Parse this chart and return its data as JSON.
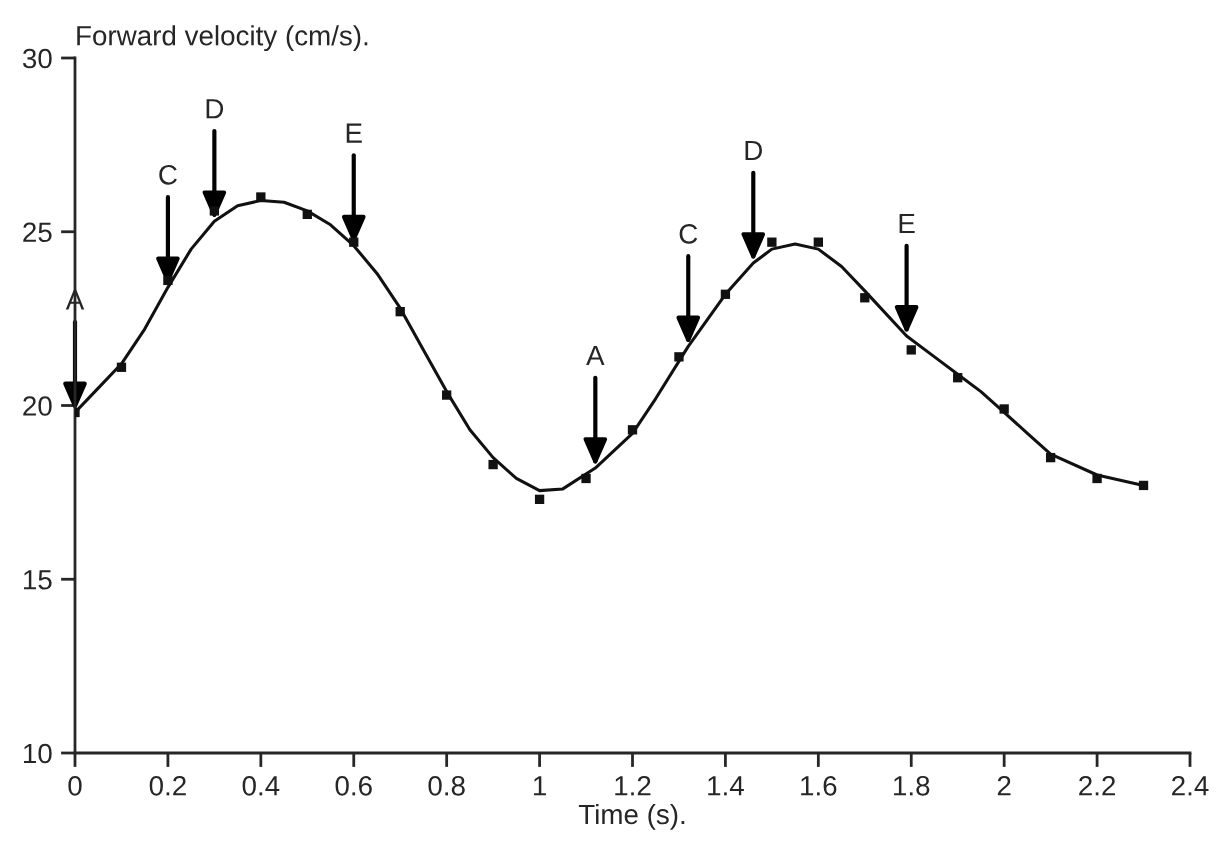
{
  "chart_data": {
    "type": "scatter",
    "xlabel": "Time (s).",
    "ylabel": "Forward velocity (cm/s).",
    "xlim": [
      0,
      2.4
    ],
    "ylim": [
      10,
      30
    ],
    "xticks": [
      0,
      0.2,
      0.4,
      0.6,
      0.8,
      1,
      1.2,
      1.4,
      1.6,
      1.8,
      2,
      2.2,
      2.4
    ],
    "yticks": [
      10,
      15,
      20,
      25,
      30
    ],
    "grid": false,
    "legend": false,
    "series": [
      {
        "marker": "square",
        "color": "#111111",
        "x": [
          0,
          0.1,
          0.2,
          0.3,
          0.4,
          0.5,
          0.6,
          0.7,
          0.8,
          0.9,
          1.0,
          1.1,
          1.2,
          1.3,
          1.4,
          1.5,
          1.6,
          1.7,
          1.8,
          1.9,
          2.0,
          2.1,
          2.2,
          2.3
        ],
        "values": [
          19.8,
          21.1,
          23.6,
          25.6,
          26.0,
          25.5,
          24.7,
          22.7,
          20.3,
          18.3,
          17.3,
          17.9,
          19.3,
          21.4,
          23.2,
          24.7,
          24.7,
          23.1,
          21.6,
          20.8,
          19.9,
          18.5,
          17.9,
          17.7
        ]
      },
      {
        "type": "line",
        "color": "#111111",
        "line_style": "solid",
        "x": [
          0,
          0.05,
          0.1,
          0.15,
          0.2,
          0.25,
          0.3,
          0.35,
          0.4,
          0.45,
          0.5,
          0.55,
          0.6,
          0.65,
          0.7,
          0.75,
          0.8,
          0.85,
          0.9,
          0.95,
          1.0,
          1.05,
          1.12,
          1.2,
          1.25,
          1.32,
          1.4,
          1.46,
          1.5,
          1.55,
          1.6,
          1.65,
          1.7,
          1.79,
          1.85,
          1.9,
          1.95,
          2.0,
          2.05,
          2.1,
          2.2,
          2.3
        ],
        "values": [
          19.8,
          20.5,
          21.2,
          22.2,
          23.4,
          24.5,
          25.3,
          25.75,
          25.9,
          25.85,
          25.6,
          25.2,
          24.6,
          23.8,
          22.8,
          21.6,
          20.4,
          19.3,
          18.5,
          17.9,
          17.55,
          17.6,
          18.2,
          19.2,
          20.2,
          21.7,
          23.2,
          24.1,
          24.5,
          24.65,
          24.5,
          24.0,
          23.3,
          22.0,
          21.4,
          20.9,
          20.4,
          19.8,
          19.2,
          18.6,
          18.0,
          17.7
        ]
      }
    ],
    "annotations": [
      {
        "text": "A",
        "x": 0,
        "y": 19.8
      },
      {
        "text": "C",
        "x": 0.2,
        "y": 23.4
      },
      {
        "text": "D",
        "x": 0.3,
        "y": 25.3
      },
      {
        "text": "E",
        "x": 0.6,
        "y": 24.6
      },
      {
        "text": "A",
        "x": 1.12,
        "y": 18.2
      },
      {
        "text": "C",
        "x": 1.32,
        "y": 21.7
      },
      {
        "text": "D",
        "x": 1.46,
        "y": 24.1
      },
      {
        "text": "E",
        "x": 1.79,
        "y": 22.0
      }
    ]
  }
}
